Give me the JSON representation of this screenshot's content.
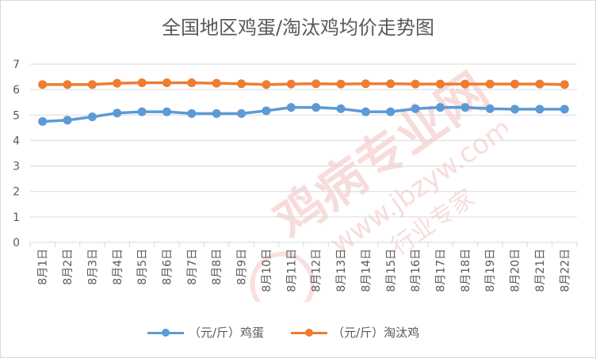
{
  "chart_data": {
    "type": "line",
    "title": "全国地区鸡蛋/淘汰鸡均价走势图",
    "xlabel": "",
    "ylabel": "",
    "ylim": [
      0,
      7
    ],
    "yticks": [
      0,
      1,
      2,
      3,
      4,
      5,
      6,
      7
    ],
    "grid": true,
    "legend": "bottom",
    "categories": [
      "8月1日",
      "8月2日",
      "8月3日",
      "8月4日",
      "8月5日",
      "8月6日",
      "8月7日",
      "8月8日",
      "8月9日",
      "8月10日",
      "8月11日",
      "8月12日",
      "8月13日",
      "8月14日",
      "8月15日",
      "8月16日",
      "8月17日",
      "8月18日",
      "8月19日",
      "8月20日",
      "8月21日",
      "8月22日"
    ],
    "series": [
      {
        "name": "（元/斤）鸡蛋",
        "color": "#5b9bd5",
        "values": [
          4.75,
          4.8,
          4.93,
          5.08,
          5.13,
          5.13,
          5.06,
          5.06,
          5.06,
          5.17,
          5.3,
          5.3,
          5.25,
          5.13,
          5.13,
          5.25,
          5.3,
          5.3,
          5.25,
          5.23,
          5.23,
          5.23
        ]
      },
      {
        "name": "（元/斤）淘汰鸡",
        "color": "#ed7d31",
        "values": [
          6.2,
          6.2,
          6.2,
          6.25,
          6.27,
          6.27,
          6.27,
          6.25,
          6.23,
          6.2,
          6.22,
          6.23,
          6.22,
          6.23,
          6.23,
          6.22,
          6.22,
          6.22,
          6.22,
          6.22,
          6.22,
          6.2
        ]
      }
    ]
  },
  "watermark": {
    "text": "鸡病专业网",
    "url": "www.jbzyw.com",
    "sub": "行业专家"
  }
}
